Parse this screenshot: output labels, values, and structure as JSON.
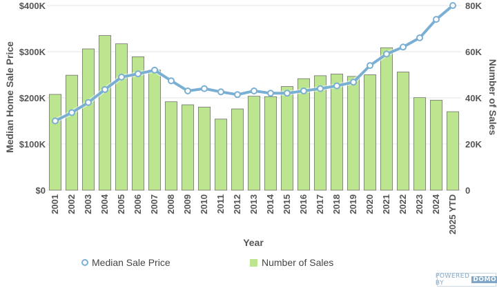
{
  "chart_data": {
    "type": "bar",
    "xlabel": "Year",
    "ylabel_left": "Median Home Sale Price",
    "ylabel_right": "Number of Sales",
    "categories": [
      "2001",
      "2002",
      "2003",
      "2004",
      "2005",
      "2006",
      "2007",
      "2008",
      "2009",
      "2010",
      "2011",
      "2012",
      "2013",
      "2014",
      "2015",
      "2016",
      "2017",
      "2018",
      "2019",
      "2020",
      "2021",
      "2022",
      "2023",
      "2024",
      "2025 YTD"
    ],
    "series": [
      {
        "name": "Number of Sales",
        "type": "bar",
        "axis": "right",
        "color": "#bde58f",
        "values": [
          41500,
          49800,
          61200,
          67000,
          63400,
          57800,
          52000,
          38300,
          37000,
          36000,
          30800,
          35200,
          40700,
          40500,
          44900,
          48300,
          49600,
          50300,
          49300,
          50000,
          61700,
          51200,
          40100,
          39000,
          34000
        ]
      },
      {
        "name": "Median Sale Price",
        "type": "line",
        "axis": "left",
        "color": "#7aafd4",
        "values": [
          150000,
          168000,
          190000,
          218000,
          245000,
          252000,
          260000,
          237000,
          215000,
          220000,
          213000,
          207000,
          215000,
          210000,
          210000,
          215000,
          220000,
          226000,
          234000,
          270000,
          295000,
          310000,
          330000,
          370000,
          400000
        ]
      }
    ],
    "ylim_left": [
      0,
      400000
    ],
    "ylim_right": [
      0,
      80000
    ],
    "yticks_left": [
      "$0",
      "$100K",
      "$200K",
      "$300K",
      "$400K"
    ],
    "yticks_right": [
      "0",
      "20K",
      "40K",
      "60K",
      "80K"
    ],
    "grid": true,
    "legend_position": "bottom"
  },
  "badge": {
    "prefix": "POWERED BY",
    "brand": "DOMO"
  }
}
